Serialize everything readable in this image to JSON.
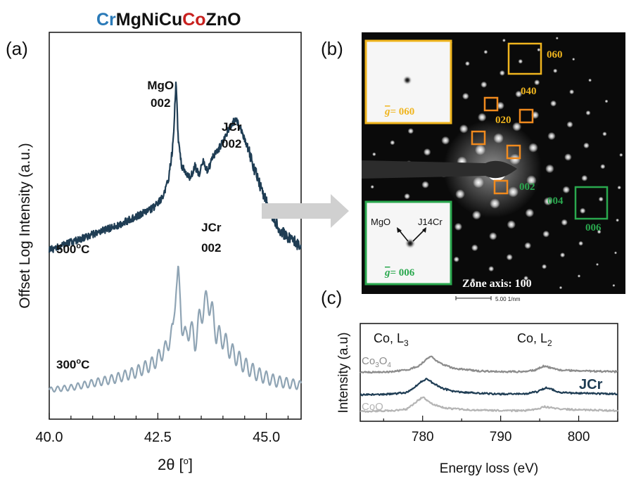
{
  "title": {
    "parts": [
      {
        "text": "Cr",
        "color": "#2a7ab8"
      },
      {
        "text": "MgNiCu",
        "color": "#111111"
      },
      {
        "text": "Co",
        "color": "#c8201e"
      },
      {
        "text": "ZnO",
        "color": "#111111"
      }
    ]
  },
  "panel_labels": {
    "a": "(a)",
    "b": "(b)",
    "c": "(c)"
  },
  "colors": {
    "dark": "#1f3d54",
    "light": "#8fa4b4",
    "gray": "#8c8c8c",
    "lightgray": "#b4b4b4",
    "orange": "#f08a1e",
    "gold": "#f0b51e",
    "green": "#2aa84e"
  },
  "chart_data": [
    {
      "id": "a",
      "type": "line",
      "xlabel": "2θ [°]",
      "xlabel_parts": {
        "base": "2θ [",
        "sup": "o",
        "end": "]"
      },
      "ylabel": "Offset Log Intensity (a.u.)",
      "xlim": [
        40.0,
        45.8
      ],
      "xticks": [
        40.0,
        42.5,
        45.0
      ],
      "xtick_labels": [
        "40.0",
        "42.5",
        "45.0"
      ],
      "series": [
        {
          "name": "500°C",
          "label_base": "500",
          "label_sup": "o",
          "label_end": "C",
          "color": "#1f3d54",
          "points": [
            [
              40.0,
              0.18
            ],
            [
              40.4,
              0.21
            ],
            [
              40.8,
              0.24
            ],
            [
              41.2,
              0.27
            ],
            [
              41.6,
              0.3
            ],
            [
              42.0,
              0.34
            ],
            [
              42.3,
              0.37
            ],
            [
              42.5,
              0.4
            ],
            [
              42.65,
              0.45
            ],
            [
              42.75,
              0.52
            ],
            [
              42.85,
              0.68
            ],
            [
              42.92,
              0.98
            ],
            [
              42.97,
              0.7
            ],
            [
              43.05,
              0.58
            ],
            [
              43.15,
              0.55
            ],
            [
              43.25,
              0.52
            ],
            [
              43.35,
              0.58
            ],
            [
              43.45,
              0.54
            ],
            [
              43.55,
              0.6
            ],
            [
              43.65,
              0.55
            ],
            [
              43.75,
              0.62
            ],
            [
              43.9,
              0.66
            ],
            [
              44.0,
              0.7
            ],
            [
              44.1,
              0.74
            ],
            [
              44.2,
              0.78
            ],
            [
              44.3,
              0.8
            ],
            [
              44.4,
              0.76
            ],
            [
              44.55,
              0.68
            ],
            [
              44.7,
              0.58
            ],
            [
              44.9,
              0.46
            ],
            [
              45.1,
              0.36
            ],
            [
              45.3,
              0.28
            ],
            [
              45.5,
              0.24
            ],
            [
              45.8,
              0.2
            ]
          ],
          "annotations": [
            {
              "line1": "MgO",
              "line2": "002",
              "x": 42.92
            },
            {
              "line1": "JCr",
              "line2": "002",
              "x": 44.2
            }
          ]
        },
        {
          "name": "300°C",
          "label_base": "300",
          "label_sup": "o",
          "label_end": "C",
          "color": "#8fa4b4",
          "points": [
            [
              40.0,
              0.05
            ],
            [
              40.5,
              0.06
            ],
            [
              41.0,
              0.08
            ],
            [
              41.5,
              0.1
            ],
            [
              42.0,
              0.13
            ],
            [
              42.4,
              0.17
            ],
            [
              42.7,
              0.24
            ],
            [
              42.85,
              0.32
            ],
            [
              42.92,
              0.52
            ],
            [
              42.97,
              0.58
            ],
            [
              43.05,
              0.35
            ],
            [
              43.15,
              0.28
            ],
            [
              43.25,
              0.34
            ],
            [
              43.35,
              0.26
            ],
            [
              43.45,
              0.36
            ],
            [
              43.55,
              0.42
            ],
            [
              43.65,
              0.46
            ],
            [
              43.75,
              0.4
            ],
            [
              43.85,
              0.3
            ],
            [
              44.0,
              0.28
            ],
            [
              44.2,
              0.22
            ],
            [
              44.5,
              0.16
            ],
            [
              44.8,
              0.12
            ],
            [
              45.2,
              0.09
            ],
            [
              45.8,
              0.07
            ]
          ],
          "annotations": [
            {
              "line1": "JCr",
              "line2": "002",
              "x": 43.65
            }
          ]
        }
      ]
    },
    {
      "id": "c",
      "type": "line",
      "xlabel": "Energy loss (eV)",
      "ylabel": "Intensity (a.u)",
      "xlim": [
        772,
        805
      ],
      "xticks": [
        780,
        790,
        800
      ],
      "xtick_labels": [
        "780",
        "790",
        "800"
      ],
      "edge_labels": [
        {
          "base": "Co, L",
          "sub": "3",
          "x": 779
        },
        {
          "base": "Co, L",
          "sub": "2",
          "x": 796
        }
      ],
      "series": [
        {
          "name": "Co3O4",
          "label_base": "Co",
          "label_sub1": "3",
          "label_mid": "O",
          "label_sub2": "4",
          "color": "#8c8c8c",
          "points": [
            [
              772,
              0.52
            ],
            [
              776,
              0.53
            ],
            [
              778,
              0.55
            ],
            [
              779.5,
              0.6
            ],
            [
              780.5,
              0.68
            ],
            [
              781.0,
              0.72
            ],
            [
              781.5,
              0.68
            ],
            [
              782.5,
              0.62
            ],
            [
              784,
              0.57
            ],
            [
              787,
              0.54
            ],
            [
              790,
              0.53
            ],
            [
              793,
              0.53
            ],
            [
              794.5,
              0.55
            ],
            [
              795.5,
              0.6
            ],
            [
              796.3,
              0.58
            ],
            [
              797.5,
              0.55
            ],
            [
              800,
              0.54
            ],
            [
              805,
              0.53
            ]
          ]
        },
        {
          "name": "JCr",
          "label_base": "JCr",
          "color": "#1f3d54",
          "points": [
            [
              772,
              0.25
            ],
            [
              776,
              0.26
            ],
            [
              778,
              0.28
            ],
            [
              779.0,
              0.35
            ],
            [
              780.0,
              0.42
            ],
            [
              780.5,
              0.44
            ],
            [
              781.2,
              0.4
            ],
            [
              782.5,
              0.33
            ],
            [
              784,
              0.29
            ],
            [
              787,
              0.27
            ],
            [
              790,
              0.26
            ],
            [
              793,
              0.26
            ],
            [
              794.8,
              0.29
            ],
            [
              795.8,
              0.34
            ],
            [
              796.5,
              0.32
            ],
            [
              797.5,
              0.28
            ],
            [
              800,
              0.27
            ],
            [
              805,
              0.26
            ]
          ]
        },
        {
          "name": "CoO",
          "label_base": "CoO",
          "color": "#b4b4b4",
          "points": [
            [
              772,
              0.05
            ],
            [
              776,
              0.06
            ],
            [
              778,
              0.08
            ],
            [
              778.8,
              0.14
            ],
            [
              779.6,
              0.2
            ],
            [
              780.1,
              0.22
            ],
            [
              780.6,
              0.18
            ],
            [
              781.5,
              0.13
            ],
            [
              783,
              0.09
            ],
            [
              786,
              0.07
            ],
            [
              790,
              0.06
            ],
            [
              793,
              0.06
            ],
            [
              794.8,
              0.08
            ],
            [
              795.5,
              0.11
            ],
            [
              796.2,
              0.1
            ],
            [
              797.5,
              0.08
            ],
            [
              800,
              0.07
            ],
            [
              805,
              0.06
            ]
          ]
        }
      ]
    }
  ],
  "diffraction": {
    "zone_axis": "Zone axis: 100",
    "scale_bar": "5.00 1/nm",
    "spot_labels": {
      "s060": "060",
      "s040": "040",
      "s020": "020",
      "s002": "002",
      "s004": "004",
      "s006": "006"
    },
    "inset_top": {
      "gbar": "g",
      "text": "= 060"
    },
    "inset_bottom": {
      "gbar": "g",
      "text": "= 006",
      "left": "MgO",
      "right": "J14Cr"
    }
  }
}
